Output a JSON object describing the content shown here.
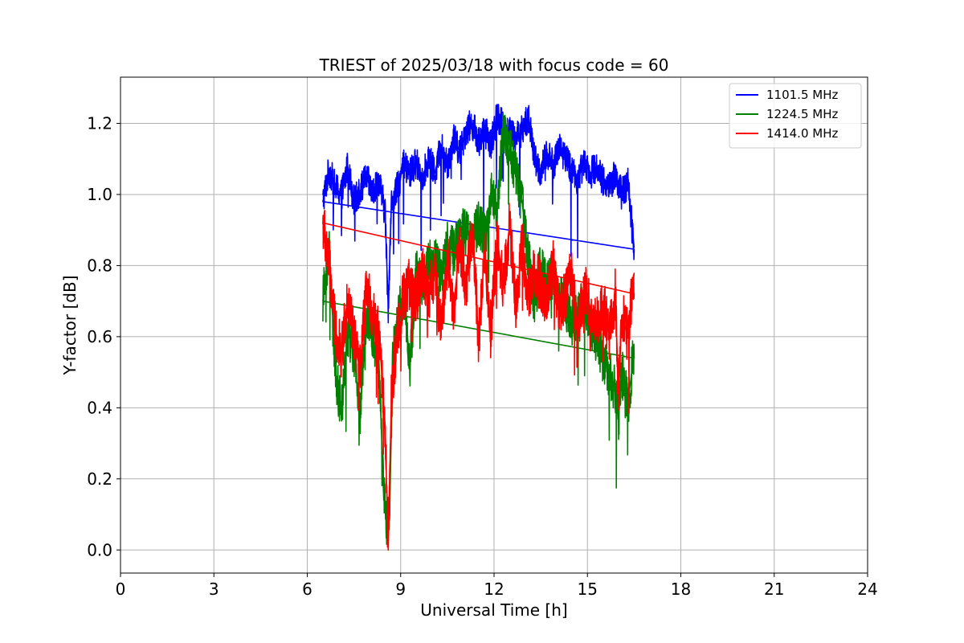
{
  "chart_data": {
    "type": "line",
    "title": "TRIEST of 2025/03/18 with focus code = 60",
    "xlabel": "Universal Time [h]",
    "ylabel": "Y-factor [dB]",
    "xlim": [
      0,
      24
    ],
    "ylim": [
      -0.065,
      1.33
    ],
    "xticks": [
      0,
      3,
      6,
      9,
      12,
      15,
      18,
      21,
      24
    ],
    "yticks": [
      0.0,
      0.2,
      0.4,
      0.6,
      0.8,
      1.0,
      1.2
    ],
    "xtick_labels": [
      "0",
      "3",
      "6",
      "9",
      "12",
      "15",
      "18",
      "21",
      "24"
    ],
    "ytick_labels": [
      "0.0",
      "0.2",
      "0.4",
      "0.6",
      "0.8",
      "1.0",
      "1.2"
    ],
    "grid": true,
    "legend_position": "top-right",
    "series": [
      {
        "name": "1101.5 MHz",
        "color": "#0000ff",
        "x": [
          6.5,
          6.7,
          6.9,
          7.1,
          7.3,
          7.5,
          7.7,
          7.9,
          8.1,
          8.3,
          8.5,
          8.6,
          8.7,
          8.9,
          9.1,
          9.3,
          9.5,
          9.7,
          9.9,
          10.1,
          10.3,
          10.5,
          10.7,
          10.9,
          11.1,
          11.3,
          11.5,
          11.7,
          11.9,
          12.1,
          12.3,
          12.5,
          12.7,
          12.9,
          13.1,
          13.3,
          13.5,
          13.7,
          13.9,
          14.1,
          14.3,
          14.5,
          14.7,
          14.9,
          15.1,
          15.3,
          15.5,
          15.7,
          15.9,
          16.1,
          16.3,
          16.5
        ],
        "y": [
          0.98,
          1.07,
          1.02,
          1.0,
          1.08,
          0.98,
          1.01,
          1.05,
          1.0,
          1.04,
          0.95,
          0.68,
          0.97,
          1.02,
          1.08,
          1.06,
          1.09,
          1.05,
          1.1,
          1.06,
          1.14,
          1.08,
          1.16,
          1.12,
          1.18,
          1.2,
          1.15,
          1.18,
          1.14,
          1.22,
          1.2,
          1.18,
          1.16,
          1.18,
          1.22,
          1.1,
          1.06,
          1.12,
          1.08,
          1.14,
          1.1,
          1.07,
          1.04,
          1.1,
          1.06,
          1.08,
          1.04,
          1.02,
          1.06,
          1.0,
          1.03,
          0.85
        ]
      },
      {
        "name": "1224.5 MHz",
        "color": "#008000",
        "x": [
          6.5,
          6.7,
          6.9,
          7.1,
          7.3,
          7.5,
          7.7,
          7.9,
          8.1,
          8.3,
          8.45,
          8.55,
          8.65,
          8.75,
          8.9,
          9.1,
          9.3,
          9.5,
          9.7,
          9.9,
          10.1,
          10.3,
          10.5,
          10.7,
          10.9,
          11.1,
          11.3,
          11.5,
          11.7,
          11.9,
          12.1,
          12.3,
          12.5,
          12.7,
          12.9,
          13.1,
          13.3,
          13.5,
          13.7,
          13.9,
          14.1,
          14.3,
          14.5,
          14.7,
          14.9,
          15.1,
          15.3,
          15.5,
          15.7,
          15.9,
          16.0,
          16.1,
          16.3,
          16.5
        ],
        "y": [
          0.7,
          0.85,
          0.5,
          0.39,
          0.62,
          0.55,
          0.37,
          0.68,
          0.6,
          0.54,
          0.16,
          0.08,
          0.12,
          0.55,
          0.65,
          0.72,
          0.52,
          0.78,
          0.74,
          0.8,
          0.82,
          0.76,
          0.86,
          0.84,
          0.88,
          0.9,
          0.86,
          0.92,
          0.88,
          1.0,
          0.96,
          1.18,
          1.14,
          1.06,
          0.98,
          0.82,
          0.7,
          0.8,
          0.74,
          0.78,
          0.72,
          0.68,
          0.64,
          0.66,
          0.7,
          0.62,
          0.6,
          0.54,
          0.5,
          0.44,
          0.37,
          0.5,
          0.41,
          0.56
        ]
      },
      {
        "name": "1414.0 MHz",
        "color": "#ff0000",
        "x": [
          6.5,
          6.7,
          6.9,
          7.1,
          7.3,
          7.5,
          7.7,
          7.9,
          8.1,
          8.3,
          8.5,
          8.6,
          8.7,
          8.9,
          9.1,
          9.3,
          9.5,
          9.7,
          9.9,
          10.1,
          10.3,
          10.5,
          10.7,
          10.9,
          11.1,
          11.3,
          11.5,
          11.7,
          11.9,
          12.1,
          12.3,
          12.5,
          12.7,
          12.9,
          13.1,
          13.3,
          13.5,
          13.7,
          13.9,
          14.1,
          14.3,
          14.5,
          14.7,
          14.9,
          15.1,
          15.3,
          15.5,
          15.7,
          15.9,
          16.0,
          16.1,
          16.3,
          16.5
        ],
        "y": [
          0.92,
          0.8,
          0.62,
          0.55,
          0.72,
          0.6,
          0.5,
          0.74,
          0.66,
          0.62,
          0.35,
          0.0,
          0.42,
          0.62,
          0.72,
          0.75,
          0.7,
          0.8,
          0.72,
          0.78,
          0.62,
          0.82,
          0.68,
          0.86,
          0.74,
          0.9,
          0.6,
          0.84,
          0.62,
          0.88,
          0.74,
          0.92,
          0.68,
          0.86,
          0.72,
          0.78,
          0.74,
          0.7,
          0.8,
          0.66,
          0.72,
          0.78,
          0.62,
          0.74,
          0.68,
          0.64,
          0.7,
          0.6,
          0.72,
          0.42,
          0.66,
          0.6,
          0.78
        ]
      }
    ]
  }
}
